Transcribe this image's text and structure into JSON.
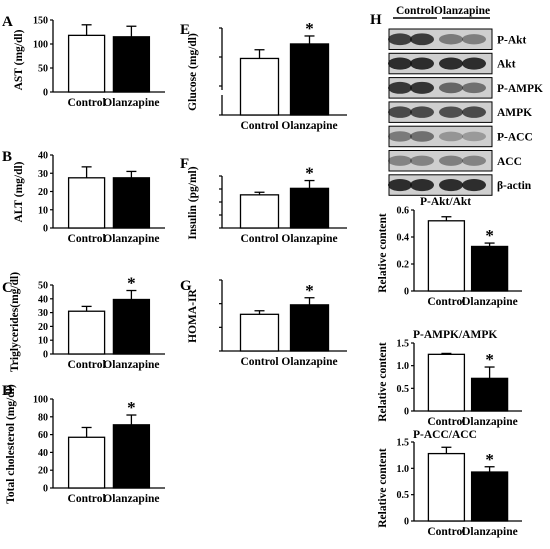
{
  "figure": {
    "western_blot": {
      "panel_label": "H",
      "group_headers": [
        "Control",
        "Olanzapine"
      ],
      "band_labels": [
        "P-Akt",
        "Akt",
        "P-AMPK",
        "AMPK",
        "P-ACC",
        "ACC",
        "β-actin"
      ],
      "band_intensities": [
        [
          0.75,
          0.78,
          0.45,
          0.42
        ],
        [
          0.85,
          0.85,
          0.85,
          0.85
        ],
        [
          0.8,
          0.82,
          0.55,
          0.5
        ],
        [
          0.7,
          0.7,
          0.68,
          0.7
        ],
        [
          0.45,
          0.5,
          0.3,
          0.28
        ],
        [
          0.4,
          0.4,
          0.42,
          0.4
        ],
        [
          0.85,
          0.85,
          0.85,
          0.85
        ]
      ],
      "band_color": "#111111"
    },
    "colors": {
      "control": "#ffffff",
      "olanzapine": "#000000",
      "edge": "#000000"
    },
    "significance_marker": "*"
  },
  "chart_data": [
    {
      "id": "A",
      "panel_label": "A",
      "type": "bar",
      "title": "",
      "ylabel": "AST (mg/dl)",
      "categories": [
        "Control",
        "Olanzapine"
      ],
      "values": [
        118,
        115
      ],
      "errors": [
        22,
        22
      ],
      "ylim": [
        0,
        150
      ],
      "yticks": [
        "0",
        "50",
        "100",
        "150"
      ],
      "significant": [
        false,
        false
      ]
    },
    {
      "id": "B",
      "panel_label": "B",
      "type": "bar",
      "title": "",
      "ylabel": "ALT (mg/dl)",
      "categories": [
        "Control",
        "Olanzapine"
      ],
      "values": [
        27.5,
        27.5
      ],
      "errors": [
        6,
        3.5
      ],
      "ylim": [
        0,
        40
      ],
      "yticks": [
        "0",
        "10",
        "20",
        "30",
        "40"
      ],
      "significant": [
        false,
        false
      ]
    },
    {
      "id": "C",
      "panel_label": "C",
      "type": "bar",
      "title": "",
      "ylabel": "Triglycerides(mg/dl)",
      "categories": [
        "Control",
        "Olanzapine"
      ],
      "values": [
        31,
        39.5
      ],
      "errors": [
        3.5,
        6.5
      ],
      "ylim": [
        0,
        50
      ],
      "yticks": [
        "0",
        "10",
        "20",
        "30",
        "40",
        "50"
      ],
      "significant": [
        false,
        true
      ]
    },
    {
      "id": "D",
      "panel_label": "D",
      "type": "bar",
      "title": "",
      "ylabel": "Total cholesterol (mg/dl)",
      "categories": [
        "Control",
        "Olanzapine"
      ],
      "values": [
        57,
        71
      ],
      "errors": [
        11,
        11
      ],
      "ylim": [
        0,
        100
      ],
      "yticks": [
        "0",
        "20",
        "40",
        "60",
        "80",
        "100"
      ],
      "significant": [
        false,
        true
      ]
    },
    {
      "id": "E",
      "panel_label": "E",
      "type": "bar",
      "title": "",
      "ylabel": "Glucose (mg/dl)",
      "categories": [
        "Control",
        "Olanzapine"
      ],
      "values": [
        99,
        109
      ],
      "errors": [
        6,
        5.5
      ],
      "ylim": [
        60,
        120
      ],
      "yticks": [
        "",
        "",
        "",
        ""
      ],
      "axis_break": true,
      "significant": [
        false,
        true
      ]
    },
    {
      "id": "F",
      "panel_label": "F",
      "type": "bar",
      "title": "",
      "ylabel": "Insulin (pg/ml)",
      "categories": [
        "Control",
        "Olanzapine"
      ],
      "values": [
        255,
        305
      ],
      "errors": [
        20,
        60
      ],
      "ylim": [
        0,
        400
      ],
      "yticks": [
        "",
        "",
        "",
        "",
        ""
      ],
      "significant": [
        false,
        true
      ]
    },
    {
      "id": "G",
      "panel_label": "G",
      "type": "bar",
      "title": "",
      "ylabel": "HOMA-IR",
      "categories": [
        "Control",
        "Olanzapine"
      ],
      "values": [
        1.55,
        1.95
      ],
      "errors": [
        0.15,
        0.3
      ],
      "ylim": [
        0,
        3
      ],
      "yticks": [
        "",
        "",
        "",
        ""
      ],
      "significant": [
        false,
        true
      ]
    },
    {
      "id": "H1",
      "panel_label": "",
      "type": "bar",
      "title": "P-Akt/Akt",
      "ylabel": "Relative content",
      "categories": [
        "Control",
        "Olanzapine"
      ],
      "values": [
        0.52,
        0.33
      ],
      "errors": [
        0.03,
        0.025
      ],
      "ylim": [
        0,
        0.6
      ],
      "yticks": [
        "0",
        "0.2",
        "0.4",
        "0.6"
      ],
      "significant": [
        false,
        true
      ]
    },
    {
      "id": "H2",
      "panel_label": "",
      "type": "bar",
      "title": "P-AMPK/AMPK",
      "ylabel": "Relative content",
      "categories": [
        "Control",
        "Olanzapine"
      ],
      "values": [
        1.25,
        0.72
      ],
      "errors": [
        0.02,
        0.25
      ],
      "ylim": [
        0,
        1.5
      ],
      "yticks": [
        "0",
        "0.5",
        "1.0",
        "1.5"
      ],
      "significant": [
        false,
        true
      ]
    },
    {
      "id": "H3",
      "panel_label": "",
      "type": "bar",
      "title": "P-ACC/ACC",
      "ylabel": "Relative content",
      "categories": [
        "Control",
        "Olanzapine"
      ],
      "values": [
        1.28,
        0.93
      ],
      "errors": [
        0.12,
        0.1
      ],
      "ylim": [
        0,
        1.5
      ],
      "yticks": [
        "0",
        "0.5",
        "1.0",
        "1.5"
      ],
      "significant": [
        false,
        true
      ]
    }
  ]
}
